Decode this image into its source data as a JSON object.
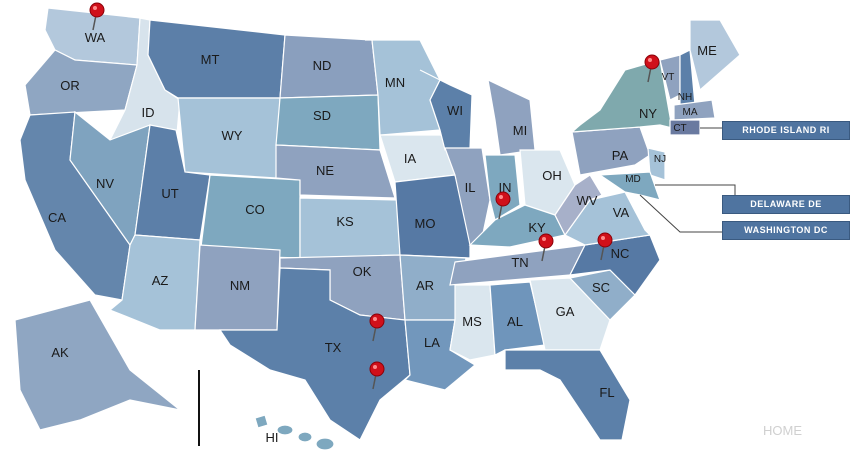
{
  "states": [
    {
      "id": "WA",
      "label": "WA",
      "color": "#b3c8dc"
    },
    {
      "id": "OR",
      "label": "OR",
      "color": "#8fa6c2"
    },
    {
      "id": "CA",
      "label": "CA",
      "color": "#6486ac"
    },
    {
      "id": "ID",
      "label": "ID",
      "color": "#d7e3ec"
    },
    {
      "id": "NV",
      "label": "NV",
      "color": "#7fa3bf"
    },
    {
      "id": "MT",
      "label": "MT",
      "color": "#5c7fa8"
    },
    {
      "id": "WY",
      "label": "WY",
      "color": "#a5c2d8"
    },
    {
      "id": "UT",
      "label": "UT",
      "color": "#5c7fa8"
    },
    {
      "id": "CO",
      "label": "CO",
      "color": "#7ea8bf"
    },
    {
      "id": "AZ",
      "label": "AZ",
      "color": "#a5c2d8"
    },
    {
      "id": "NM",
      "label": "NM",
      "color": "#8fa2bf"
    },
    {
      "id": "ND",
      "label": "ND",
      "color": "#8a9fbe"
    },
    {
      "id": "SD",
      "label": "SD",
      "color": "#7ea8bf"
    },
    {
      "id": "NE",
      "label": "NE",
      "color": "#8fa2bf"
    },
    {
      "id": "KS",
      "label": "KS",
      "color": "#a5c2d8"
    },
    {
      "id": "OK",
      "label": "OK",
      "color": "#8fa2bf"
    },
    {
      "id": "TX",
      "label": "TX",
      "color": "#5c80a9"
    },
    {
      "id": "MN",
      "label": "MN",
      "color": "#a5c2d8"
    },
    {
      "id": "IA",
      "label": "IA",
      "color": "#dae6ee"
    },
    {
      "id": "MO",
      "label": "MO",
      "color": "#5679a4"
    },
    {
      "id": "AR",
      "label": "AR",
      "color": "#90aec9"
    },
    {
      "id": "LA",
      "label": "LA",
      "color": "#7297bc"
    },
    {
      "id": "WI",
      "label": "WI",
      "color": "#5c80a9"
    },
    {
      "id": "IL",
      "label": "IL",
      "color": "#8fa2bf"
    },
    {
      "id": "MI",
      "label": "MI",
      "color": "#8fa2bf"
    },
    {
      "id": "IN",
      "label": "IN",
      "color": "#7ea8bf"
    },
    {
      "id": "OH",
      "label": "OH",
      "color": "#dae6ee"
    },
    {
      "id": "KY",
      "label": "KY",
      "color": "#7ea8bf"
    },
    {
      "id": "TN",
      "label": "TN",
      "color": "#8fa2bf"
    },
    {
      "id": "MS",
      "label": "MS",
      "color": "#dae6ee"
    },
    {
      "id": "AL",
      "label": "AL",
      "color": "#6f95bb"
    },
    {
      "id": "GA",
      "label": "GA",
      "color": "#dae6ee"
    },
    {
      "id": "FL",
      "label": "FL",
      "color": "#5c80a9"
    },
    {
      "id": "SC",
      "label": "SC",
      "color": "#90aec9"
    },
    {
      "id": "NC",
      "label": "NC",
      "color": "#5679a4"
    },
    {
      "id": "VA",
      "label": "VA",
      "color": "#a5c2d8"
    },
    {
      "id": "WV",
      "label": "WV",
      "color": "#a7b0c9"
    },
    {
      "id": "PA",
      "label": "PA",
      "color": "#8fa2bf"
    },
    {
      "id": "NY",
      "label": "NY",
      "color": "#7fa9ad"
    },
    {
      "id": "NJ",
      "label": "NJ",
      "color": "#a5c2d8"
    },
    {
      "id": "MD",
      "label": "MD",
      "color": "#7ea8bf"
    },
    {
      "id": "VT",
      "label": "VT",
      "color": "#8fa2bf"
    },
    {
      "id": "NH",
      "label": "NH",
      "color": "#5c80a9"
    },
    {
      "id": "ME",
      "label": "ME",
      "color": "#b3c8dc"
    },
    {
      "id": "MA",
      "label": "MA",
      "color": "#8fa2bf"
    },
    {
      "id": "CT",
      "label": "CT",
      "color": "#6a7aa0"
    },
    {
      "id": "AK",
      "label": "AK",
      "color": "#8fa6c2"
    },
    {
      "id": "HI",
      "label": "HI",
      "color": "#7ea8bf"
    }
  ],
  "pins": [
    "WA",
    "NY",
    "IN",
    "KY",
    "NC",
    "TX",
    "TX"
  ],
  "pin_color": "#d0101a",
  "callouts": {
    "ri": "RHODE ISLAND  RI",
    "de": "DELAWARE  DE",
    "dc": "WASHINGTON DC"
  },
  "callout_color": "#4f74a0",
  "home": "HOME"
}
